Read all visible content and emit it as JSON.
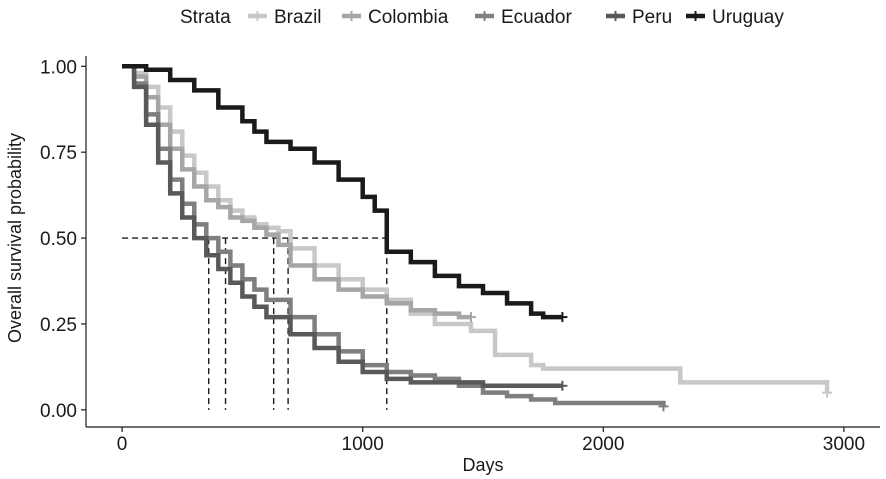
{
  "chart_data": {
    "type": "line",
    "title": "",
    "xlabel": "Days",
    "ylabel": "Overall survival probability",
    "xlim": [
      -150,
      3150
    ],
    "ylim": [
      -0.05,
      1.03
    ],
    "x_ticks": [
      0,
      1000,
      2000,
      3000
    ],
    "y_ticks": [
      0.0,
      0.25,
      0.5,
      0.75,
      1.0
    ],
    "x_tick_labels": [
      "0",
      "1000",
      "2000",
      "3000"
    ],
    "y_tick_labels": [
      "0.00",
      "0.25",
      "0.50",
      "0.75",
      "1.00"
    ],
    "grid": false,
    "legend": {
      "title": "Strata",
      "position": "top",
      "entries": [
        "Brazil",
        "Colombia",
        "Ecuador",
        "Peru",
        "Uruguay"
      ]
    },
    "series": [
      {
        "name": "Brazil",
        "color": "#c8c8c8",
        "x": [
          0,
          50,
          100,
          150,
          200,
          250,
          300,
          350,
          400,
          450,
          500,
          550,
          600,
          650,
          700,
          800,
          900,
          1000,
          1100,
          1200,
          1300,
          1350,
          1450,
          1550,
          1700,
          1750,
          2000,
          2200,
          2320,
          2600,
          2930
        ],
        "y": [
          1.0,
          0.98,
          0.94,
          0.88,
          0.81,
          0.74,
          0.69,
          0.65,
          0.61,
          0.58,
          0.56,
          0.54,
          0.53,
          0.52,
          0.47,
          0.42,
          0.38,
          0.35,
          0.32,
          0.28,
          0.25,
          0.25,
          0.23,
          0.16,
          0.13,
          0.12,
          0.12,
          0.12,
          0.08,
          0.08,
          0.05
        ]
      },
      {
        "name": "Colombia",
        "color": "#a6a6a6",
        "x": [
          0,
          50,
          100,
          150,
          200,
          250,
          300,
          350,
          400,
          450,
          500,
          550,
          600,
          650,
          700,
          800,
          900,
          1000,
          1100,
          1200,
          1300,
          1400,
          1450
        ],
        "y": [
          1.0,
          0.97,
          0.91,
          0.83,
          0.76,
          0.7,
          0.65,
          0.61,
          0.59,
          0.56,
          0.55,
          0.53,
          0.51,
          0.48,
          0.42,
          0.38,
          0.35,
          0.33,
          0.31,
          0.29,
          0.28,
          0.27,
          0.27
        ]
      },
      {
        "name": "Ecuador",
        "color": "#7f7f7f",
        "x": [
          0,
          50,
          100,
          150,
          200,
          250,
          300,
          350,
          400,
          450,
          500,
          550,
          600,
          700,
          800,
          900,
          1000,
          1100,
          1200,
          1300,
          1400,
          1500,
          1600,
          1700,
          1800,
          2000,
          2250
        ],
        "y": [
          1.0,
          0.95,
          0.86,
          0.76,
          0.67,
          0.6,
          0.54,
          0.5,
          0.46,
          0.42,
          0.38,
          0.35,
          0.32,
          0.27,
          0.22,
          0.17,
          0.13,
          0.11,
          0.1,
          0.09,
          0.07,
          0.05,
          0.04,
          0.03,
          0.02,
          0.02,
          0.01
        ]
      },
      {
        "name": "Peru",
        "color": "#595959",
        "x": [
          0,
          50,
          100,
          150,
          200,
          250,
          300,
          350,
          400,
          450,
          500,
          550,
          600,
          700,
          800,
          900,
          1000,
          1100,
          1200,
          1300,
          1500,
          1700,
          1830
        ],
        "y": [
          1.0,
          0.94,
          0.83,
          0.72,
          0.63,
          0.56,
          0.5,
          0.45,
          0.41,
          0.37,
          0.33,
          0.3,
          0.27,
          0.22,
          0.18,
          0.14,
          0.11,
          0.09,
          0.08,
          0.08,
          0.07,
          0.07,
          0.07
        ]
      },
      {
        "name": "Uruguay",
        "color": "#1a1a1a",
        "x": [
          0,
          100,
          200,
          300,
          400,
          500,
          550,
          600,
          700,
          800,
          900,
          1000,
          1050,
          1100,
          1200,
          1300,
          1400,
          1500,
          1600,
          1700,
          1750,
          1830
        ],
        "y": [
          1.0,
          0.99,
          0.96,
          0.93,
          0.88,
          0.84,
          0.81,
          0.78,
          0.76,
          0.72,
          0.67,
          0.62,
          0.58,
          0.46,
          0.43,
          0.39,
          0.36,
          0.34,
          0.31,
          0.28,
          0.27,
          0.27
        ]
      }
    ],
    "median_lines": {
      "y": 0.5,
      "x_values": [
        360,
        430,
        630,
        690,
        1100
      ],
      "style": "dashed"
    }
  }
}
